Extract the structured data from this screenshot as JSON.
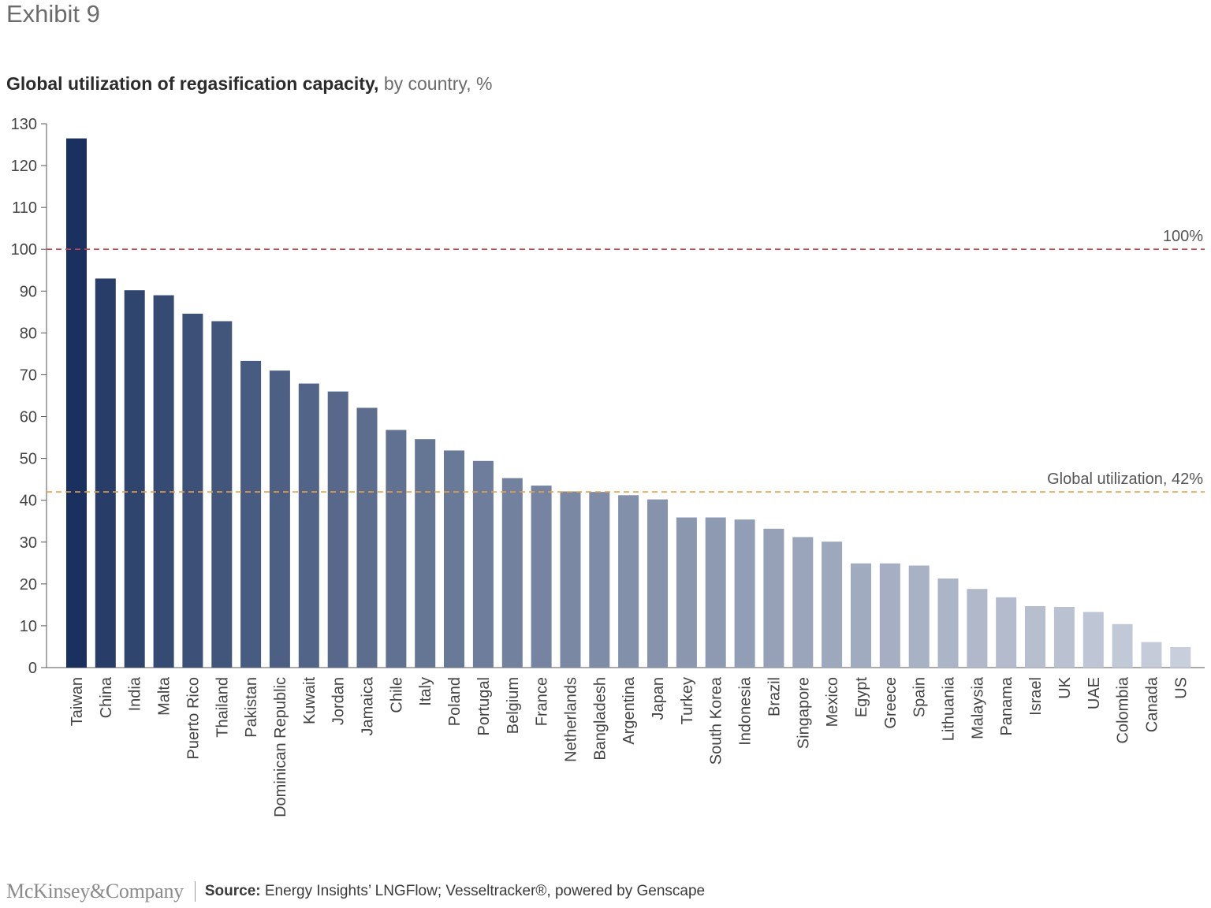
{
  "header": {
    "exhibit": "Exhibit 9",
    "title_bold": "Global utilization of regasification capacity,",
    "title_rest": " by country, %"
  },
  "footer": {
    "logo": "McKinsey&Company",
    "source_label": "Source:",
    "source_text": " Energy Insights’ LNGFlow; Vesseltracker®, powered by Genscape"
  },
  "chart_data": {
    "type": "bar",
    "title": "Global utilization of regasification capacity, by country, %",
    "xlabel": "",
    "ylabel": "%",
    "ylim": [
      0,
      130
    ],
    "yticks": [
      0,
      10,
      20,
      30,
      40,
      50,
      60,
      70,
      80,
      90,
      100,
      110,
      120,
      130
    ],
    "categories": [
      "Taiwan",
      "China",
      "India",
      "Malta",
      "Puerto Rico",
      "Thailand",
      "Pakistan",
      "Dominican Republic",
      "Kuwait",
      "Jordan",
      "Jamaica",
      "Chile",
      "Italy",
      "Poland",
      "Portugal",
      "Belgium",
      "France",
      "Netherlands",
      "Bangladesh",
      "Argentina",
      "Japan",
      "Turkey",
      "South Korea",
      "Indonesia",
      "Brazil",
      "Singapore",
      "Mexico",
      "Egypt",
      "Greece",
      "Spain",
      "Lithuania",
      "Malaysia",
      "Panama",
      "Israel",
      "UK",
      "UAE",
      "Colombia",
      "Canada",
      "US"
    ],
    "values": [
      126.5,
      93,
      90.2,
      89,
      84.6,
      82.8,
      73.3,
      71,
      67.9,
      66,
      62.1,
      56.8,
      54.6,
      51.9,
      49.4,
      45.3,
      43.5,
      42.1,
      42,
      41.2,
      40.2,
      35.9,
      35.9,
      35.4,
      33.2,
      31.2,
      30.1,
      24.9,
      24.9,
      24.4,
      21.3,
      18.8,
      16.8,
      14.7,
      14.5,
      13.3,
      10.4,
      6.1,
      4.9
    ],
    "reference_lines": [
      {
        "value": 100,
        "label": "100%",
        "color": "#c9414a"
      },
      {
        "value": 42,
        "label": "Global utilization, 42%",
        "color": "#e8a048"
      }
    ],
    "colors": {
      "dark": "#1d3461",
      "light": "#c8cedb",
      "axis": "#555555",
      "label": "#444444"
    }
  }
}
